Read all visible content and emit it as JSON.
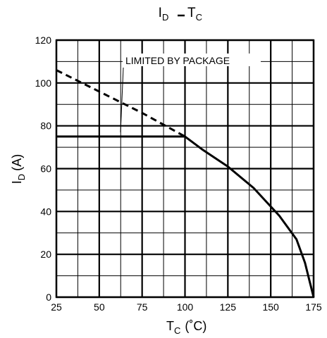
{
  "chart_data": {
    "type": "line",
    "title": {
      "left_symbol": "I",
      "left_subscript": "D",
      "right_symbol": "T",
      "right_subscript": "C"
    },
    "xlabel": {
      "symbol": "T",
      "subscript": "C",
      "unit": "(˚C)"
    },
    "ylabel": {
      "symbol": "I",
      "subscript": "D",
      "unit": "(A)"
    },
    "xlim": [
      25,
      175
    ],
    "ylim": [
      0,
      120
    ],
    "x_ticks": [
      "25",
      "50",
      "75",
      "100",
      "125",
      "150",
      "175"
    ],
    "y_ticks": [
      "0",
      "20",
      "40",
      "60",
      "80",
      "100",
      "120"
    ],
    "grid": true,
    "annotation": "LIMITED BY PACKAGE",
    "series": [
      {
        "style": "dashed",
        "x": [
          25,
          50,
          75,
          100
        ],
        "y": [
          106,
          96,
          86,
          75
        ]
      },
      {
        "style": "solid",
        "x": [
          25,
          100,
          110,
          125,
          140,
          155,
          165,
          170,
          172.5,
          175
        ],
        "y": [
          75,
          75,
          69,
          61,
          51,
          38,
          27,
          16,
          8,
          0
        ]
      }
    ]
  }
}
